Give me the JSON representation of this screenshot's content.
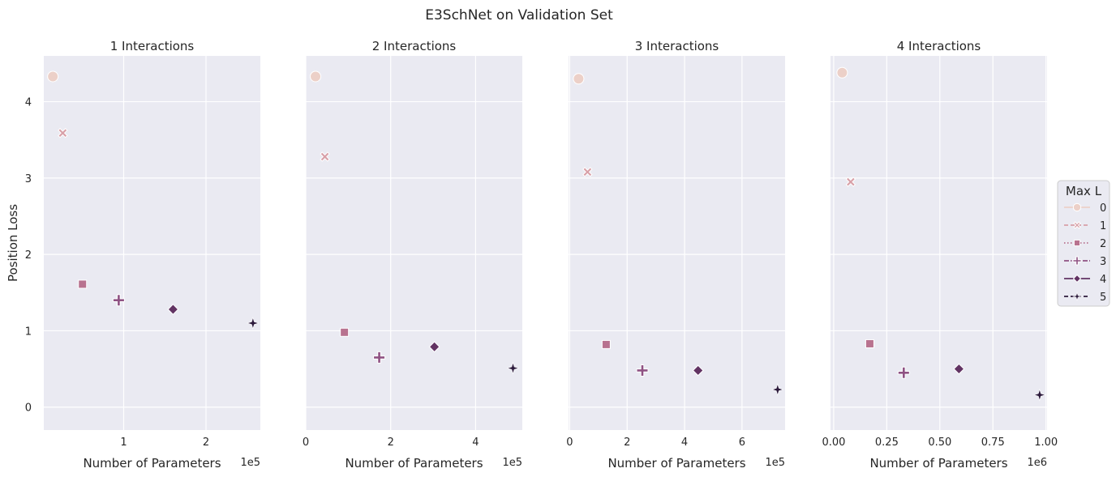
{
  "figure": {
    "title": "E3SchNet on Validation Set"
  },
  "legend": {
    "title": "Max L",
    "placement": "center-right",
    "entries": [
      {
        "label": "0",
        "marker": "circle",
        "color": "#ecd0c8",
        "dash": "solid"
      },
      {
        "label": "1",
        "marker": "x",
        "color": "#d8a0a8",
        "dash": "dashed"
      },
      {
        "label": "2",
        "marker": "square",
        "color": "#b8728f",
        "dash": "dotted"
      },
      {
        "label": "3",
        "marker": "plus",
        "color": "#8f5283",
        "dash": "dashdot"
      },
      {
        "label": "4",
        "marker": "diamond",
        "color": "#623363",
        "dash": "solid"
      },
      {
        "label": "5",
        "marker": "star",
        "color": "#2c1a3c",
        "dash": "dashed"
      }
    ]
  },
  "chart_data": [
    {
      "type": "scatter",
      "title": "1 Interactions",
      "xlabel": "Number of Parameters",
      "ylabel": "Position Loss",
      "x_offset_label": "1e5",
      "xlim": [
        0.03,
        2.66
      ],
      "ylim": [
        -0.3,
        4.6
      ],
      "xticks": [
        {
          "v": 1,
          "label": "1"
        },
        {
          "v": 2,
          "label": "2"
        }
      ],
      "yticks": [
        {
          "v": 0,
          "label": "0"
        },
        {
          "v": 1,
          "label": "1"
        },
        {
          "v": 2,
          "label": "2"
        },
        {
          "v": 3,
          "label": "3"
        },
        {
          "v": 4,
          "label": "4"
        }
      ],
      "grid": true,
      "points": [
        {
          "maxL": 0,
          "x": 0.14,
          "y": 4.33
        },
        {
          "maxL": 1,
          "x": 0.26,
          "y": 3.59
        },
        {
          "maxL": 2,
          "x": 0.5,
          "y": 1.61
        },
        {
          "maxL": 3,
          "x": 0.94,
          "y": 1.4
        },
        {
          "maxL": 4,
          "x": 1.6,
          "y": 1.28
        },
        {
          "maxL": 5,
          "x": 2.57,
          "y": 1.1
        }
      ]
    },
    {
      "type": "scatter",
      "title": "2 Interactions",
      "xlabel": "Number of Parameters",
      "ylabel": "",
      "x_offset_label": "1e5",
      "xlim": [
        0,
        5.1
      ],
      "ylim": [
        -0.3,
        4.6
      ],
      "xticks": [
        {
          "v": 0,
          "label": "0"
        },
        {
          "v": 2,
          "label": "2"
        },
        {
          "v": 4,
          "label": "4"
        }
      ],
      "yticks": [],
      "grid": true,
      "points": [
        {
          "maxL": 0,
          "x": 0.23,
          "y": 4.33
        },
        {
          "maxL": 1,
          "x": 0.45,
          "y": 3.28
        },
        {
          "maxL": 2,
          "x": 0.91,
          "y": 0.98
        },
        {
          "maxL": 3,
          "x": 1.73,
          "y": 0.65
        },
        {
          "maxL": 4,
          "x": 3.03,
          "y": 0.79
        },
        {
          "maxL": 5,
          "x": 4.88,
          "y": 0.51
        }
      ]
    },
    {
      "type": "scatter",
      "title": "3 Interactions",
      "xlabel": "Number of Parameters",
      "ylabel": "",
      "x_offset_label": "1e5",
      "xlim": [
        -0.04,
        7.5
      ],
      "ylim": [
        -0.3,
        4.6
      ],
      "xticks": [
        {
          "v": 0,
          "label": "0"
        },
        {
          "v": 2,
          "label": "2"
        },
        {
          "v": 4,
          "label": "4"
        },
        {
          "v": 6,
          "label": "6"
        }
      ],
      "yticks": [],
      "grid": true,
      "points": [
        {
          "maxL": 0,
          "x": 0.31,
          "y": 4.3
        },
        {
          "maxL": 1,
          "x": 0.62,
          "y": 3.08
        },
        {
          "maxL": 2,
          "x": 1.27,
          "y": 0.82
        },
        {
          "maxL": 3,
          "x": 2.53,
          "y": 0.48
        },
        {
          "maxL": 4,
          "x": 4.47,
          "y": 0.48
        },
        {
          "maxL": 5,
          "x": 7.24,
          "y": 0.23
        }
      ]
    },
    {
      "type": "scatter",
      "title": "4 Interactions",
      "xlabel": "Number of Parameters",
      "ylabel": "",
      "x_offset_label": "1e6",
      "xlim": [
        -0.015,
        1.005
      ],
      "ylim": [
        -0.3,
        4.6
      ],
      "xticks": [
        {
          "v": 0,
          "label": "0.00"
        },
        {
          "v": 0.25,
          "label": "0.25"
        },
        {
          "v": 0.5,
          "label": "0.50"
        },
        {
          "v": 0.75,
          "label": "0.75"
        },
        {
          "v": 1.0,
          "label": "1.00"
        }
      ],
      "yticks": [],
      "grid": true,
      "points": [
        {
          "maxL": 0,
          "x": 0.04,
          "y": 4.38
        },
        {
          "maxL": 1,
          "x": 0.08,
          "y": 2.95
        },
        {
          "maxL": 2,
          "x": 0.17,
          "y": 0.83
        },
        {
          "maxL": 3,
          "x": 0.33,
          "y": 0.45
        },
        {
          "maxL": 4,
          "x": 0.59,
          "y": 0.5
        },
        {
          "maxL": 5,
          "x": 0.97,
          "y": 0.16
        }
      ]
    }
  ]
}
